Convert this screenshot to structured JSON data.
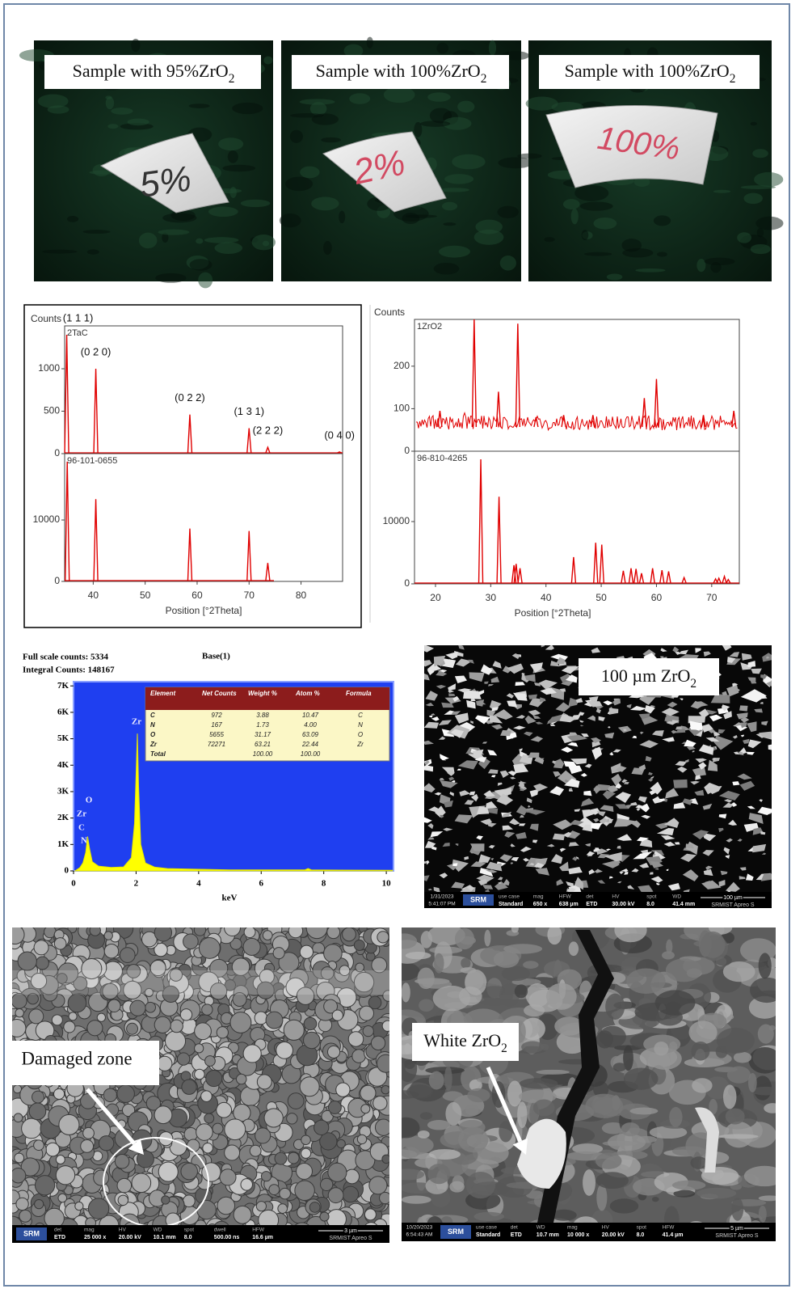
{
  "photos": [
    {
      "label": {
        "text": "Sample with 95%ZrO",
        "sub": "2"
      },
      "marking": "5%"
    },
    {
      "label": {
        "text": "Sample with 100%ZrO",
        "sub": "2"
      },
      "marking": "2%"
    },
    {
      "label": {
        "text": "Sample with 100%ZrO",
        "sub": "2"
      },
      "marking": "100%"
    }
  ],
  "chart_data": [
    {
      "type": "line",
      "y_label": "Counts",
      "x_label": "Position [°2Theta]",
      "color": "#e00000",
      "xlim": [
        34.5,
        88
      ],
      "xticks": [
        40,
        50,
        60,
        70,
        80
      ],
      "panels": [
        {
          "name": "2TaC",
          "ylim": [
            0,
            1505
          ],
          "yticks": [
            0,
            500,
            1000
          ],
          "x": [
            34.9,
            40.5,
            58.6,
            70.0,
            73.6,
            87.4
          ],
          "values": [
            1400,
            1000,
            460,
            300,
            75,
            20
          ],
          "peak_labels": [
            "(1 1 1)",
            "(0 2 0)",
            "(0 2 2)",
            "(1 3 1)",
            "(2 2 2)",
            "(0 4 0)"
          ]
        },
        {
          "name": "96-101-0655",
          "ylim": [
            0,
            20800
          ],
          "yticks": [
            0,
            10000
          ],
          "x": [
            35.0,
            40.5,
            58.6,
            70.0,
            73.6
          ],
          "values": [
            19500,
            13400,
            8600,
            8200,
            3000
          ]
        }
      ]
    },
    {
      "type": "line",
      "y_label": "Counts",
      "x_label": "Position [°2Theta]",
      "color": "#e00000",
      "xlim": [
        16.2,
        75
      ],
      "xticks": [
        20,
        30,
        40,
        50,
        60,
        70
      ],
      "panels": [
        {
          "name": "1ZrO2",
          "ylim": [
            0,
            310
          ],
          "yticks": [
            0,
            100,
            200
          ],
          "x": [
            20.8,
            27.0,
            31.4,
            34.9,
            38.2,
            43.2,
            48.5,
            57.8,
            60.0,
            68.5,
            74.0
          ],
          "values": [
            95,
            310,
            140,
            300,
            80,
            85,
            85,
            125,
            170,
            85,
            95
          ]
        },
        {
          "name": "96-810-4265",
          "ylim": [
            0,
            21300
          ],
          "yticks": [
            0,
            10000
          ],
          "x": [
            28.2,
            31.5,
            34.2,
            34.6,
            35.3,
            45.0,
            49.0,
            50.1,
            54.0,
            55.4,
            56.3,
            57.3,
            59.3,
            61.0,
            62.2,
            65.0,
            70.7,
            71.3,
            72.3,
            73.0
          ],
          "values": [
            20000,
            14000,
            3000,
            3200,
            2500,
            4300,
            6600,
            6300,
            2100,
            2500,
            2400,
            1700,
            2500,
            2200,
            2000,
            1000,
            800,
            900,
            1200,
            700
          ]
        }
      ]
    },
    {
      "type": "area",
      "full_scale": "Full scale counts: 5334",
      "integral": "Integral Counts: 148167",
      "spectrum_name": "Base(1)",
      "x_label": "keV",
      "color": "#ffff00",
      "xlim": [
        0,
        10.23
      ],
      "xticks": [
        0,
        2,
        4,
        6,
        8,
        10
      ],
      "ylim": [
        0,
        7160
      ],
      "yticks": [
        {
          "value": 0,
          "label": "0"
        },
        {
          "value": 1000,
          "label": "1K"
        },
        {
          "value": 2000,
          "label": "2K"
        },
        {
          "value": 3000,
          "label": "3K"
        },
        {
          "value": 4000,
          "label": "4K"
        },
        {
          "value": 5000,
          "label": "5K"
        },
        {
          "value": 6000,
          "label": "6K"
        },
        {
          "value": 7000,
          "label": "7K"
        }
      ],
      "x": [
        0.05,
        0.2,
        0.3,
        0.39,
        0.45,
        0.52,
        0.6,
        0.8,
        1.2,
        1.6,
        1.85,
        1.95,
        2.0,
        2.04,
        2.08,
        2.15,
        2.3,
        2.6,
        3.0,
        4.0,
        5.0,
        7.4,
        7.5,
        7.6,
        8.5,
        10.2
      ],
      "values": [
        0,
        120,
        300,
        700,
        1300,
        800,
        350,
        180,
        130,
        150,
        500,
        1800,
        3600,
        5200,
        3200,
        1000,
        300,
        140,
        90,
        60,
        40,
        40,
        90,
        40,
        30,
        20
      ],
      "peak_labels": [
        "Zr",
        "O",
        "Zr",
        "C",
        "N"
      ],
      "table": {
        "header": [
          "Element",
          "Net Counts",
          "Weight %",
          "Atom %",
          "Formula"
        ],
        "rows": [
          [
            "C",
            "972",
            "3.88",
            "10.47",
            "C"
          ],
          [
            "N",
            "167",
            "1.73",
            "4.00",
            "N"
          ],
          [
            "O",
            "5655",
            "31.17",
            "63.09",
            "O"
          ],
          [
            "Zr",
            "72271",
            "63.21",
            "22.44",
            "Zr"
          ],
          [
            "Total",
            null,
            "100.00",
            "100.00",
            null
          ]
        ]
      }
    }
  ],
  "sem": [
    {
      "label": {
        "text": "100 µm ZrO",
        "sub": "2"
      },
      "logo": "SRM",
      "stamp": [
        "1/31/2023",
        "5:41:07 PM"
      ],
      "info": [
        [
          "use case",
          "Standard"
        ],
        [
          "mag",
          "650 x"
        ],
        [
          "HFW",
          "638 µm"
        ],
        [
          "det",
          "ETD"
        ],
        [
          "HV",
          "30.00 kV"
        ],
        [
          "spot",
          "8.0"
        ],
        [
          "WD",
          "41.4 mm"
        ]
      ],
      "scale": "100 µm",
      "instrument": "SRMIST Apreo S"
    },
    {
      "label": {
        "text": "Damaged zone"
      },
      "logo": "SRM",
      "info": [
        [
          "det",
          "ETD"
        ],
        [
          "mag",
          "25 000 x"
        ],
        [
          "HV",
          "20.00 kV"
        ],
        [
          "WD",
          "10.1 mm"
        ],
        [
          "spot",
          "8.0"
        ],
        [
          "dwell",
          "500.00 ns"
        ],
        [
          "HFW",
          "16.6 µm"
        ]
      ],
      "scale": "3 µm",
      "instrument": "SRMIST Apreo S"
    },
    {
      "label": {
        "text": "White ZrO",
        "sub": "2"
      },
      "logo": "SRM",
      "stamp": [
        "10/20/2023",
        "6:54:43 AM"
      ],
      "info": [
        [
          "use case",
          "Standard"
        ],
        [
          "det",
          "ETD"
        ],
        [
          "WD",
          "10.7 mm"
        ],
        [
          "mag",
          "10 000 x"
        ],
        [
          "HV",
          "20.00 kV"
        ],
        [
          "spot",
          "8.0"
        ],
        [
          "HFW",
          "41.4 µm"
        ]
      ],
      "scale": "5 µm",
      "instrument": "SRMIST Apreo S"
    }
  ]
}
